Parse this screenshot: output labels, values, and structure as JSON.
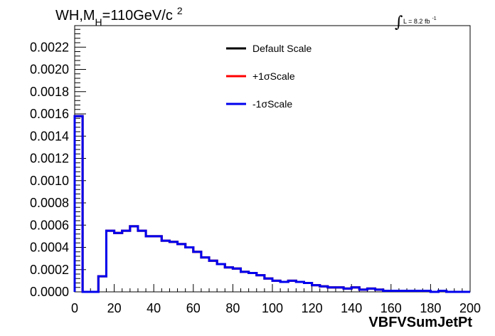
{
  "chart_data": {
    "type": "line",
    "style": "step-histogram",
    "title": {
      "main": "WH,M",
      "sub": "H",
      "rest": "=110GeV/c",
      "sup": "2"
    },
    "lumi": {
      "text": "L = 8.2 fb",
      "sup": "-1"
    },
    "xlabel": "VBFVSumJetPt",
    "ylabel": "",
    "xlim": [
      0,
      200
    ],
    "ylim": [
      0,
      0.00235
    ],
    "xticks": [
      "0",
      "20",
      "40",
      "60",
      "80",
      "100",
      "120",
      "140",
      "160",
      "180",
      "200"
    ],
    "yticks": [
      "0.0000",
      "0.0002",
      "0.0004",
      "0.0006",
      "0.0008",
      "0.0010",
      "0.0012",
      "0.0014",
      "0.0016",
      "0.0018",
      "0.0020",
      "0.0022"
    ],
    "grid": false,
    "legend_position": "top-center",
    "bin_edges": [
      0,
      4,
      8,
      12,
      16,
      20,
      24,
      28,
      32,
      36,
      40,
      44,
      48,
      52,
      56,
      60,
      64,
      68,
      72,
      76,
      80,
      84,
      88,
      92,
      96,
      100,
      104,
      108,
      112,
      116,
      120,
      124,
      128,
      132,
      136,
      140,
      144,
      148,
      152,
      156,
      160,
      164,
      168,
      172,
      176,
      180,
      184,
      188,
      192,
      196,
      200
    ],
    "series": [
      {
        "name": "Default Scale",
        "color": "#000000",
        "values": [
          0.00158,
          0.0,
          0.0,
          0.00014,
          0.00055,
          0.00053,
          0.00055,
          0.00059,
          0.00055,
          0.0005,
          0.0005,
          0.00046,
          0.00045,
          0.00043,
          0.0004,
          0.00036,
          0.00031,
          0.00028,
          0.00025,
          0.00022,
          0.00021,
          0.00018,
          0.00017,
          0.00015,
          0.00012,
          0.0001,
          9e-05,
          0.0001,
          9e-05,
          8e-05,
          6e-05,
          5e-05,
          4e-05,
          4e-05,
          3e-05,
          4e-05,
          2e-05,
          3e-05,
          2e-05,
          1e-05,
          1e-05,
          1e-05,
          1e-05,
          1e-05,
          1e-05,
          0.0,
          1e-05,
          0.0,
          0.0,
          0.0
        ]
      },
      {
        "name": "+1σScale",
        "color": "#ff0000",
        "values": [
          0.00158,
          0.0,
          0.0,
          0.00014,
          0.00055,
          0.00053,
          0.00055,
          0.00059,
          0.00055,
          0.0005,
          0.0005,
          0.00046,
          0.00045,
          0.00043,
          0.0004,
          0.00036,
          0.00031,
          0.00028,
          0.00025,
          0.00022,
          0.00021,
          0.00018,
          0.00017,
          0.00015,
          0.00012,
          0.0001,
          9e-05,
          0.0001,
          9e-05,
          8e-05,
          6e-05,
          5e-05,
          4e-05,
          4e-05,
          3e-05,
          4e-05,
          2e-05,
          3e-05,
          2e-05,
          1e-05,
          1e-05,
          1e-05,
          1e-05,
          1e-05,
          1e-05,
          0.0,
          1e-05,
          0.0,
          0.0,
          0.0
        ]
      },
      {
        "name": "-1σScale",
        "color": "#0000ee",
        "values": [
          0.00158,
          0.0,
          0.0,
          0.00014,
          0.00055,
          0.00053,
          0.00055,
          0.00059,
          0.00055,
          0.0005,
          0.0005,
          0.00046,
          0.00045,
          0.00043,
          0.0004,
          0.00036,
          0.00031,
          0.00028,
          0.00025,
          0.00022,
          0.00021,
          0.00018,
          0.00017,
          0.00015,
          0.00012,
          0.0001,
          9e-05,
          0.0001,
          9e-05,
          8e-05,
          6e-05,
          5e-05,
          4e-05,
          4e-05,
          3e-05,
          4e-05,
          2e-05,
          3e-05,
          2e-05,
          1e-05,
          1e-05,
          1e-05,
          1e-05,
          1e-05,
          1e-05,
          0.0,
          1e-05,
          0.0,
          0.0,
          0.0
        ]
      }
    ]
  }
}
